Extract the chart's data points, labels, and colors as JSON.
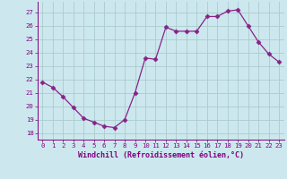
{
  "x": [
    0,
    1,
    2,
    3,
    4,
    5,
    6,
    7,
    8,
    9,
    10,
    11,
    12,
    13,
    14,
    15,
    16,
    17,
    18,
    19,
    20,
    21,
    22,
    23
  ],
  "y": [
    21.8,
    21.4,
    20.7,
    19.9,
    19.1,
    18.8,
    18.5,
    18.4,
    19.0,
    21.0,
    23.6,
    23.5,
    25.9,
    25.6,
    25.6,
    25.6,
    26.7,
    26.7,
    27.1,
    27.2,
    26.0,
    24.8,
    23.9,
    23.3
  ],
  "line_color": "#882288",
  "marker": "D",
  "marker_size": 2.5,
  "bg_color": "#cce8ee",
  "grid_color": "#aacccc",
  "xlabel": "Windchill (Refroidissement éolien,°C)",
  "ylabel_ticks": [
    18,
    19,
    20,
    21,
    22,
    23,
    24,
    25,
    26,
    27
  ],
  "xticks": [
    0,
    1,
    2,
    3,
    4,
    5,
    6,
    7,
    8,
    9,
    10,
    11,
    12,
    13,
    14,
    15,
    16,
    17,
    18,
    19,
    20,
    21,
    22,
    23
  ],
  "ylim": [
    17.5,
    27.8
  ],
  "xlim": [
    -0.5,
    23.5
  ],
  "axis_color": "#800080",
  "tick_color": "#800080",
  "xlabel_fontsize": 6.0,
  "tick_fontsize": 5.2
}
